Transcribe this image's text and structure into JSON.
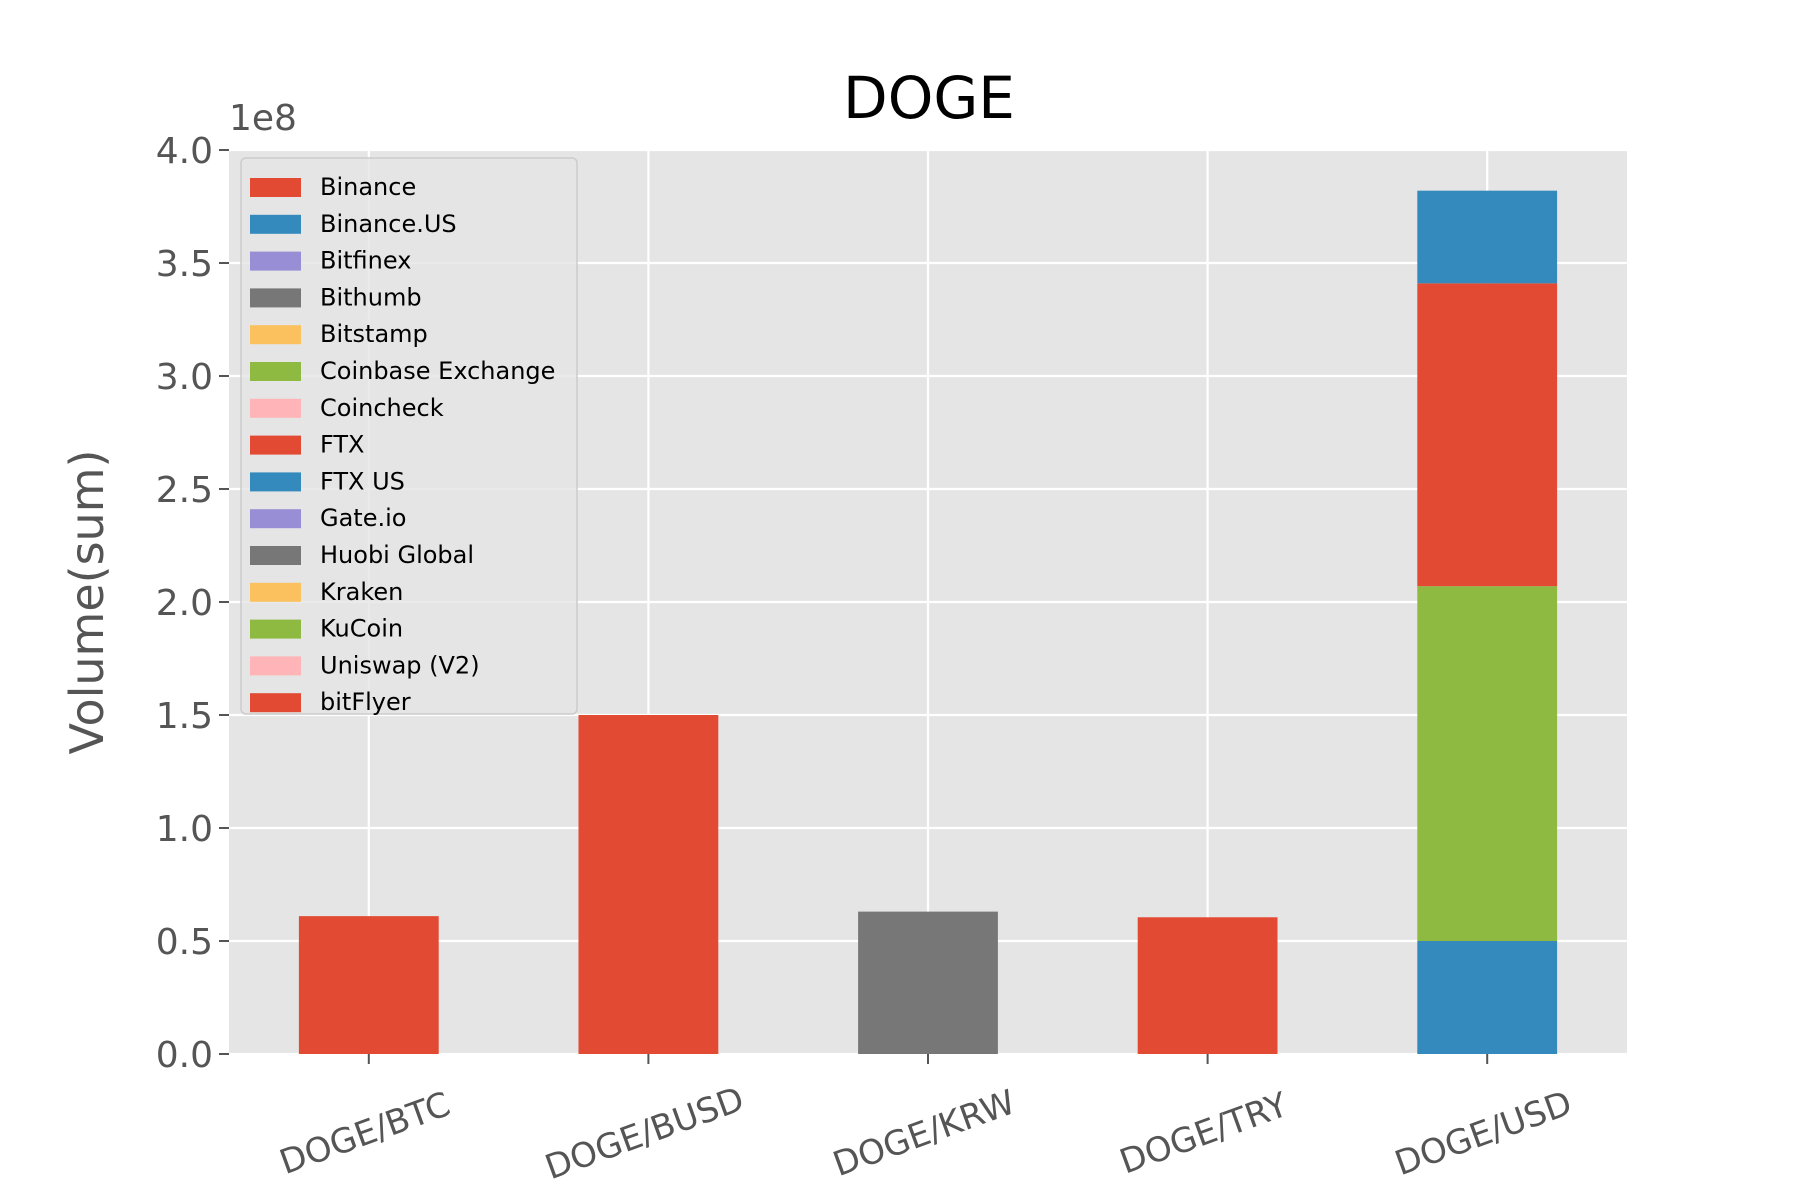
{
  "chart_data": {
    "type": "bar",
    "stacked": true,
    "title": "DOGE",
    "xlabel": "",
    "ylabel": "Volume(sum)",
    "y_offset_label": "1e8",
    "ylim": [
      0,
      400000000
    ],
    "yticks": [
      0,
      50000000,
      100000000,
      150000000,
      200000000,
      250000000,
      300000000,
      350000000,
      400000000
    ],
    "ytick_labels": [
      "0.0",
      "0.5",
      "1.0",
      "1.5",
      "2.0",
      "2.5",
      "3.0",
      "3.5",
      "4.0"
    ],
    "categories": [
      "DOGE/BTC",
      "DOGE/BUSD",
      "DOGE/KRW",
      "DOGE/TRY",
      "DOGE/USD"
    ],
    "grid": true,
    "legend_position": "top-left",
    "series": [
      {
        "name": "Binance",
        "color": "#E24A33",
        "values": [
          61000000,
          150000000,
          0,
          60500000,
          0
        ]
      },
      {
        "name": "Binance.US",
        "color": "#348ABD",
        "values": [
          0,
          0,
          0,
          0,
          50000000
        ]
      },
      {
        "name": "Bitfinex",
        "color": "#988ED5",
        "values": [
          0,
          0,
          0,
          0,
          0
        ]
      },
      {
        "name": "Bithumb",
        "color": "#777777",
        "values": [
          0,
          0,
          63000000,
          0,
          0
        ]
      },
      {
        "name": "Bitstamp",
        "color": "#FBC15E",
        "values": [
          0,
          0,
          0,
          0,
          0
        ]
      },
      {
        "name": "Coinbase Exchange",
        "color": "#8EBA42",
        "values": [
          0,
          0,
          0,
          0,
          157000000
        ]
      },
      {
        "name": "Coincheck",
        "color": "#FFB5B8",
        "values": [
          0,
          0,
          0,
          0,
          0
        ]
      },
      {
        "name": "FTX",
        "color": "#E24A33",
        "values": [
          0,
          0,
          0,
          0,
          134000000
        ]
      },
      {
        "name": "FTX US",
        "color": "#348ABD",
        "values": [
          0,
          0,
          0,
          0,
          41000000
        ]
      },
      {
        "name": "Gate.io",
        "color": "#988ED5",
        "values": [
          0,
          0,
          0,
          0,
          0
        ]
      },
      {
        "name": "Huobi Global",
        "color": "#777777",
        "values": [
          0,
          0,
          0,
          0,
          0
        ]
      },
      {
        "name": "Kraken",
        "color": "#FBC15E",
        "values": [
          0,
          0,
          0,
          0,
          0
        ]
      },
      {
        "name": "KuCoin",
        "color": "#8EBA42",
        "values": [
          0,
          0,
          0,
          0,
          0
        ]
      },
      {
        "name": "Uniswap (V2)",
        "color": "#FFB5B8",
        "values": [
          0,
          0,
          0,
          0,
          0
        ]
      },
      {
        "name": "bitFlyer",
        "color": "#E24A33",
        "values": [
          0,
          0,
          0,
          0,
          0
        ]
      }
    ]
  }
}
